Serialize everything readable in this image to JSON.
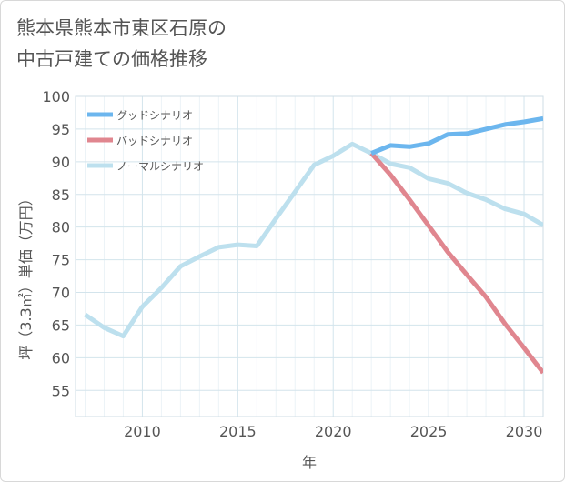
{
  "chart_data": {
    "type": "line",
    "title": [
      "熊本県熊本市東区石原の",
      "中古戸建ての価格推移"
    ],
    "xlabel": "年",
    "ylabel": "坪（3.3㎡）単価（万円）",
    "xlim": [
      2006.5,
      2031
    ],
    "ylim": [
      51,
      100
    ],
    "xticks": [
      2010,
      2015,
      2020,
      2025,
      2030
    ],
    "yticks": [
      55,
      60,
      65,
      70,
      75,
      80,
      85,
      90,
      95,
      100
    ],
    "grid": true,
    "legend_position": "top-left",
    "series": [
      {
        "name": "グッドシナリオ",
        "color": "#6cb6ee",
        "x": [
          2022,
          2023,
          2024,
          2025,
          2026,
          2027,
          2028,
          2029,
          2030,
          2031
        ],
        "y": [
          91.3,
          92.5,
          92.3,
          92.8,
          94.2,
          94.3,
          95.0,
          95.7,
          96.1,
          96.6
        ]
      },
      {
        "name": "バッドシナリオ",
        "color": "#e0868f",
        "x": [
          2022,
          2023,
          2024,
          2025,
          2026,
          2027,
          2028,
          2029,
          2030,
          2031
        ],
        "y": [
          91.3,
          88.0,
          84.2,
          80.2,
          76.2,
          72.7,
          69.3,
          65.2,
          61.5,
          57.7
        ]
      },
      {
        "name": "ノーマルシナリオ",
        "color": "#bde0ee",
        "x": [
          2007,
          2008,
          2009,
          2010,
          2011,
          2012,
          2013,
          2014,
          2015,
          2016,
          2017,
          2018,
          2019,
          2020,
          2021,
          2022,
          2023,
          2024,
          2025,
          2026,
          2027,
          2028,
          2029,
          2030,
          2031
        ],
        "y": [
          66.6,
          64.6,
          63.3,
          67.8,
          70.7,
          74.0,
          75.5,
          76.9,
          77.3,
          77.1,
          81.3,
          85.4,
          89.5,
          90.9,
          92.7,
          91.3,
          89.7,
          89.1,
          87.4,
          86.7,
          85.2,
          84.2,
          82.8,
          82.0,
          80.3
        ]
      }
    ]
  }
}
